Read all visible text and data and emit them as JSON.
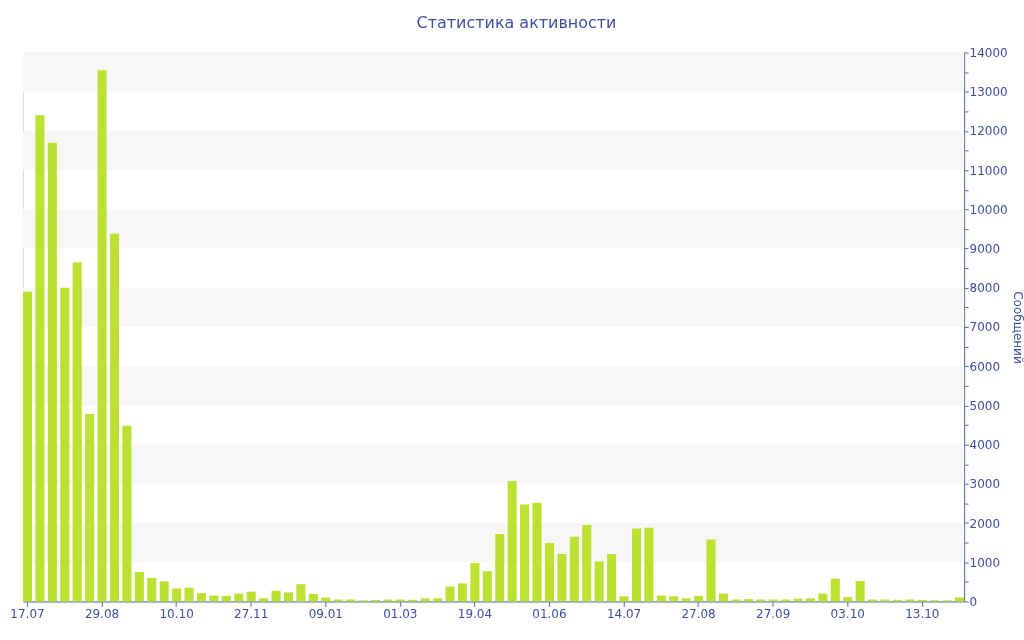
{
  "chart_data": {
    "type": "bar",
    "title": "Статистика активности",
    "ylabel": "Сообщений",
    "color": "#bce131",
    "categories": [
      "17.07",
      null,
      null,
      null,
      null,
      null,
      "29.08",
      null,
      null,
      null,
      null,
      null,
      "10.10",
      null,
      null,
      null,
      null,
      null,
      "27.11",
      null,
      null,
      null,
      null,
      null,
      "09.01",
      null,
      null,
      null,
      null,
      null,
      "01.03",
      null,
      null,
      null,
      null,
      null,
      "19.04",
      null,
      null,
      null,
      null,
      null,
      "01.06",
      null,
      null,
      null,
      null,
      null,
      "14.07",
      null,
      null,
      null,
      null,
      null,
      "27.08",
      null,
      null,
      null,
      null,
      null,
      "27.09",
      null,
      null,
      null,
      null,
      null,
      "03.10",
      null,
      null,
      null,
      null,
      null,
      "13.10",
      null,
      null,
      null
    ],
    "values": [
      7900,
      12400,
      11700,
      8000,
      8650,
      4780,
      13550,
      9380,
      4480,
      750,
      600,
      510,
      330,
      350,
      210,
      150,
      140,
      200,
      250,
      80,
      270,
      230,
      440,
      190,
      100,
      50,
      50,
      30,
      40,
      50,
      50,
      40,
      80,
      80,
      380,
      460,
      980,
      770,
      1720,
      3070,
      2470,
      2520,
      1490,
      1210,
      1650,
      1950,
      1020,
      1210,
      130,
      1860,
      1880,
      150,
      130,
      80,
      140,
      1580,
      200,
      50,
      60,
      50,
      50,
      50,
      70,
      80,
      200,
      580,
      110,
      520,
      50,
      50,
      40,
      50,
      40,
      30,
      30,
      100
    ],
    "ylim": [
      0,
      14000
    ],
    "yticks": [
      0,
      {
        "value": 500,
        "label": null
      },
      1000,
      {
        "value": 1500,
        "label": null
      },
      2000,
      {
        "value": 2500,
        "label": null
      },
      3000,
      {
        "value": 3500,
        "label": null
      },
      4000,
      {
        "value": 4500,
        "label": null
      },
      5000,
      {
        "value": 5500,
        "label": null
      },
      6000,
      {
        "value": 6500,
        "label": null
      },
      7000,
      {
        "value": 7500,
        "label": null
      },
      8000,
      {
        "value": 8500,
        "label": null
      },
      9000,
      {
        "value": 9500,
        "label": null
      },
      10000,
      {
        "value": 10500,
        "label": null
      },
      11000,
      {
        "value": 11500,
        "label": null
      },
      12000,
      {
        "value": 12500,
        "label": null
      },
      13000,
      {
        "value": 13500,
        "label": null
      },
      14000
    ],
    "bands": [
      {
        "axis": "y",
        "from": 1000,
        "to": 2000,
        "color": "#f7f7f7"
      },
      {
        "axis": "y",
        "from": 3000,
        "to": 4000,
        "color": "#f7f7f7"
      },
      {
        "axis": "y",
        "from": 5000,
        "to": 6000,
        "color": "#f7f7f7"
      },
      {
        "axis": "y",
        "from": 7000,
        "to": 8000,
        "color": "#f7f7f7"
      },
      {
        "axis": "y",
        "from": 9000,
        "to": 10000,
        "color": "#f7f7f7"
      },
      {
        "axis": "y",
        "from": 11000,
        "to": 12000,
        "color": "#f7f7f7"
      },
      {
        "axis": "y",
        "from": 13000,
        "to": 14000,
        "color": "#f7f7f7"
      }
    ]
  }
}
